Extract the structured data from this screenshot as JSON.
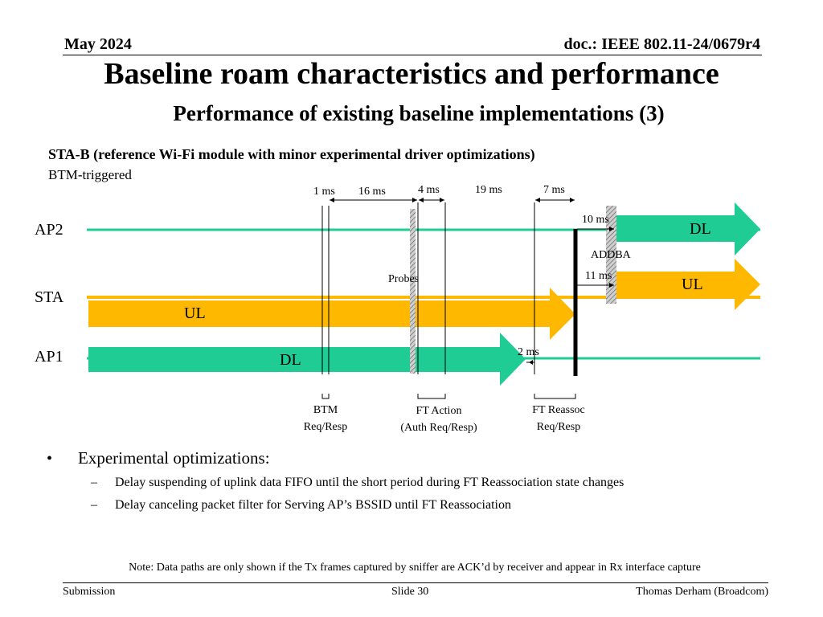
{
  "header": {
    "date": "May 2024",
    "doc": "doc.: IEEE 802.11-24/0679r4"
  },
  "title": "Baseline roam characteristics and performance",
  "subtitle": "Performance of existing baseline implementations (3)",
  "device_heading": "STA-B (reference Wi-Fi module with minor experimental driver optimizations)",
  "trigger": "BTM-triggered",
  "diagram": {
    "rows": {
      "ap2": "AP2",
      "sta": "STA",
      "ap1": "AP1"
    },
    "arrows": {
      "ul_left": "UL",
      "dl_left": "DL",
      "dl_right": "DL",
      "ul_right": "UL"
    },
    "timings": {
      "t1": "1 ms",
      "t16": "16 ms",
      "t4": "4 ms",
      "t19": "19 ms",
      "t7": "7 ms",
      "t10": "10 ms",
      "t11": "11 ms",
      "t2": "2 ms"
    },
    "labels": {
      "probes": "Probes",
      "addba": "ADDBA"
    },
    "events": [
      {
        "line1": "BTM",
        "line2": "Req/Resp"
      },
      {
        "line1": "FT Action",
        "line2": "(Auth Req/Resp)"
      },
      {
        "line1": "FT Reassoc",
        "line2": "Req/Resp"
      }
    ],
    "colors": {
      "dl": "#1fcc94",
      "ul": "#ffb800",
      "ap2_line": "#1fcc94",
      "sta_line": "#ffb800",
      "ap1_line": "#1fcc94"
    }
  },
  "bullets": {
    "main": "Experimental optimizations:",
    "sub": [
      "Delay suspending of uplink data FIFO until the short period during FT Reassociation state changes",
      "Delay canceling packet filter for Serving AP’s BSSID until FT Reassociation"
    ]
  },
  "note": "Note: Data paths are only shown if the Tx frames captured by sniffer are ACK’d by receiver and appear in Rx interface capture",
  "footer": {
    "left": "Submission",
    "center": "Slide 30",
    "right": "Thomas Derham (Broadcom)"
  }
}
